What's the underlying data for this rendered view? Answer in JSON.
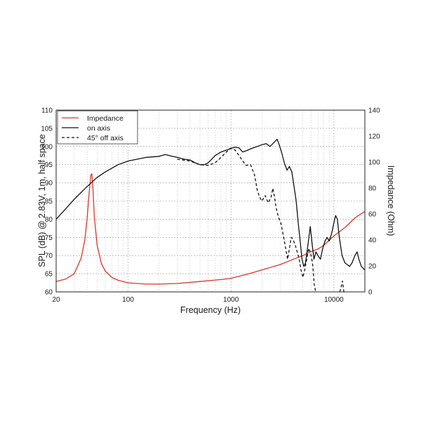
{
  "chart_data": {
    "type": "line",
    "xlabel": "Frequency (Hz)",
    "ylabel": "SPL (dB) @ 2.83V, 1m, half space",
    "y2label": "Impedance (Ohm)",
    "x_scale": "log",
    "xlim": [
      20,
      20000
    ],
    "ylim": [
      60,
      110
    ],
    "y2lim": [
      0,
      140
    ],
    "grid": true,
    "legend_position": "top-left",
    "x_ticks": [
      "20",
      "100",
      "1000",
      "10000"
    ],
    "y_ticks": [
      "60",
      "65",
      "70",
      "75",
      "80",
      "85",
      "90",
      "95",
      "100",
      "105",
      "110"
    ],
    "y2_ticks": [
      "0",
      "20",
      "40",
      "60",
      "80",
      "100",
      "120",
      "140"
    ],
    "series": [
      {
        "name": "Impedance",
        "axis": "right",
        "color": "#d8372a",
        "style": "solid",
        "points": [
          [
            20,
            8
          ],
          [
            25,
            10
          ],
          [
            30,
            14
          ],
          [
            35,
            26
          ],
          [
            38,
            40
          ],
          [
            40,
            57
          ],
          [
            42,
            78
          ],
          [
            43.5,
            90
          ],
          [
            44.5,
            91
          ],
          [
            45.5,
            80
          ],
          [
            47,
            58
          ],
          [
            50,
            36
          ],
          [
            55,
            22
          ],
          [
            60,
            16
          ],
          [
            70,
            11
          ],
          [
            80,
            9
          ],
          [
            100,
            7
          ],
          [
            150,
            6
          ],
          [
            200,
            6
          ],
          [
            300,
            6.5
          ],
          [
            500,
            8
          ],
          [
            800,
            9.5
          ],
          [
            1000,
            10.5
          ],
          [
            1500,
            14
          ],
          [
            2000,
            17
          ],
          [
            3000,
            21
          ],
          [
            4000,
            25
          ],
          [
            5000,
            28
          ],
          [
            6000,
            31
          ],
          [
            7000,
            33
          ],
          [
            8000,
            36
          ],
          [
            10000,
            43
          ],
          [
            13000,
            50
          ],
          [
            16000,
            57
          ],
          [
            20000,
            62
          ]
        ]
      },
      {
        "name": "on axis",
        "axis": "left",
        "color": "#111111",
        "style": "solid",
        "points": [
          [
            20,
            80
          ],
          [
            25,
            83
          ],
          [
            30,
            85.5
          ],
          [
            40,
            89
          ],
          [
            50,
            91.5
          ],
          [
            60,
            93
          ],
          [
            80,
            95
          ],
          [
            100,
            96
          ],
          [
            150,
            97
          ],
          [
            200,
            97.3
          ],
          [
            230,
            97.8
          ],
          [
            260,
            97.4
          ],
          [
            300,
            97
          ],
          [
            350,
            96.5
          ],
          [
            400,
            96.3
          ],
          [
            450,
            95.5
          ],
          [
            500,
            95
          ],
          [
            550,
            95
          ],
          [
            600,
            95.5
          ],
          [
            650,
            96.5
          ],
          [
            700,
            97.5
          ],
          [
            800,
            98.5
          ],
          [
            900,
            99
          ],
          [
            1000,
            99.5
          ],
          [
            1100,
            99.8
          ],
          [
            1200,
            99.6
          ],
          [
            1300,
            98.5
          ],
          [
            1400,
            98.8
          ],
          [
            1600,
            99.5
          ],
          [
            1800,
            100
          ],
          [
            2000,
            100.5
          ],
          [
            2200,
            100.8
          ],
          [
            2400,
            100
          ],
          [
            2600,
            101
          ],
          [
            2800,
            102
          ],
          [
            2900,
            101
          ],
          [
            3100,
            98.5
          ],
          [
            3300,
            95.5
          ],
          [
            3500,
            93.5
          ],
          [
            3700,
            94.5
          ],
          [
            3900,
            93
          ],
          [
            4100,
            89
          ],
          [
            4300,
            85
          ],
          [
            4500,
            79
          ],
          [
            4700,
            74
          ],
          [
            4900,
            69
          ],
          [
            5100,
            67
          ],
          [
            5300,
            68
          ],
          [
            5600,
            73
          ],
          [
            5900,
            78
          ],
          [
            6100,
            74
          ],
          [
            6400,
            69
          ],
          [
            6700,
            71
          ],
          [
            7000,
            70
          ],
          [
            7400,
            69
          ],
          [
            7800,
            72
          ],
          [
            8200,
            74
          ],
          [
            8600,
            75
          ],
          [
            9000,
            74
          ],
          [
            9500,
            76
          ],
          [
            10000,
            79
          ],
          [
            10400,
            81
          ],
          [
            10800,
            80
          ],
          [
            11300,
            75
          ],
          [
            12000,
            70
          ],
          [
            12800,
            68
          ],
          [
            13500,
            67.5
          ],
          [
            14200,
            67
          ],
          [
            15000,
            68
          ],
          [
            16000,
            70
          ],
          [
            16800,
            71
          ],
          [
            17500,
            69
          ],
          [
            18500,
            67
          ],
          [
            20000,
            66
          ]
        ]
      },
      {
        "name": "45° off axis",
        "axis": "left",
        "color": "#111111",
        "style": "dashed",
        "points": [
          [
            300,
            96.5
          ],
          [
            400,
            96
          ],
          [
            500,
            95
          ],
          [
            600,
            94.8
          ],
          [
            700,
            95.5
          ],
          [
            800,
            97
          ],
          [
            900,
            98.5
          ],
          [
            1000,
            99.5
          ],
          [
            1100,
            99
          ],
          [
            1200,
            97.5
          ],
          [
            1300,
            96
          ],
          [
            1400,
            94.8
          ],
          [
            1550,
            95
          ],
          [
            1700,
            92
          ],
          [
            1800,
            88
          ],
          [
            1900,
            86
          ],
          [
            2000,
            85
          ],
          [
            2150,
            86.5
          ],
          [
            2300,
            84.5
          ],
          [
            2450,
            86
          ],
          [
            2550,
            88.5
          ],
          [
            2650,
            86
          ],
          [
            2750,
            83
          ],
          [
            2900,
            80.5
          ],
          [
            3050,
            79
          ],
          [
            3200,
            76
          ],
          [
            3400,
            72
          ],
          [
            3550,
            69
          ],
          [
            3700,
            72
          ],
          [
            3850,
            75
          ],
          [
            4000,
            74.5
          ],
          [
            4200,
            73
          ],
          [
            4400,
            71
          ],
          [
            4600,
            69
          ],
          [
            4800,
            66
          ],
          [
            5000,
            64
          ],
          [
            5200,
            66
          ],
          [
            5450,
            69
          ],
          [
            5700,
            72
          ],
          [
            5950,
            70.5
          ],
          [
            6200,
            68
          ],
          [
            6450,
            62
          ],
          [
            6650,
            59
          ]
        ]
      },
      {
        "name": "45° off axis",
        "axis": "left",
        "color": "#111111",
        "style": "dashed",
        "points": [
          [
            11400,
            58
          ],
          [
            11700,
            61
          ],
          [
            12100,
            63
          ],
          [
            12500,
            60
          ],
          [
            12800,
            58
          ]
        ]
      }
    ]
  }
}
